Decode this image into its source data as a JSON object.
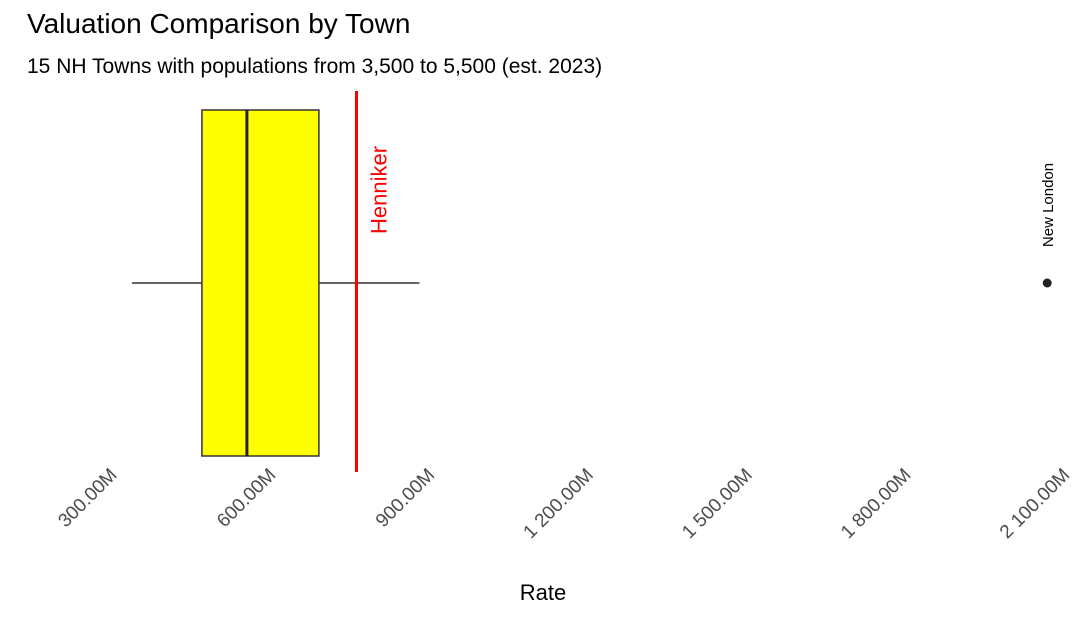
{
  "chart_data": {
    "type": "boxplot",
    "title": "Valuation Comparison by Town",
    "subtitle": "15 NH Towns with populations from 3,500 to 5,500 (est. 2023)",
    "xlabel": "Rate",
    "ylabel": "",
    "xlim": [
      200,
      2100
    ],
    "ticks": [
      {
        "value": 300,
        "label": "300.00M"
      },
      {
        "value": 600,
        "label": "600.00M"
      },
      {
        "value": 900,
        "label": "900.00M"
      },
      {
        "value": 1200,
        "label": "1 200.00M"
      },
      {
        "value": 1500,
        "label": "1 500.00M"
      },
      {
        "value": 1800,
        "label": "1 800.00M"
      },
      {
        "value": 2100,
        "label": "2 100.00M"
      }
    ],
    "box": {
      "whisker_low": 336,
      "q1": 468,
      "median": 553,
      "q3": 689,
      "whisker_high": 879,
      "fill": "#ffff00"
    },
    "reference_line": {
      "value": 760,
      "label": "Henniker",
      "color": "#ff0000"
    },
    "outliers": [
      {
        "value": 2065,
        "label": "New London"
      }
    ],
    "grid": false,
    "legend": "none"
  }
}
